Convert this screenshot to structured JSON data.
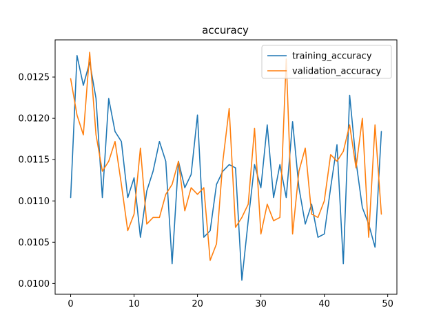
{
  "chart_data": {
    "type": "line",
    "title": "accuracy",
    "xlabel": "",
    "ylabel": "",
    "xlim": [
      -2.45,
      51.45
    ],
    "ylim": [
      0.00987,
      0.01295
    ],
    "xticks": [
      0,
      10,
      20,
      30,
      40,
      50
    ],
    "yticks": [
      0.01,
      0.0105,
      0.011,
      0.0115,
      0.012,
      0.0125
    ],
    "xtick_labels": [
      "0",
      "10",
      "20",
      "30",
      "40",
      "50"
    ],
    "ytick_labels": [
      "0.0100",
      "0.0105",
      "0.0110",
      "0.0115",
      "0.0120",
      "0.0125"
    ],
    "grid": false,
    "legend_position": "upper right",
    "x": [
      0,
      1,
      2,
      3,
      4,
      5,
      6,
      7,
      8,
      9,
      10,
      11,
      12,
      13,
      14,
      15,
      16,
      17,
      18,
      19,
      20,
      21,
      22,
      23,
      24,
      25,
      26,
      27,
      28,
      29,
      30,
      31,
      32,
      33,
      34,
      35,
      36,
      37,
      38,
      39,
      40,
      41,
      42,
      43,
      44,
      45,
      46,
      47,
      48,
      49
    ],
    "series": [
      {
        "name": "training_accuracy",
        "color": "#1f77b4",
        "values": [
          0.01104,
          0.01276,
          0.0124,
          0.01268,
          0.01224,
          0.01104,
          0.01224,
          0.01184,
          0.01172,
          0.01104,
          0.01128,
          0.01056,
          0.01112,
          0.01136,
          0.01172,
          0.01148,
          0.01024,
          0.01148,
          0.01116,
          0.01132,
          0.01204,
          0.01056,
          0.01064,
          0.0112,
          0.01136,
          0.01144,
          0.0114,
          0.01004,
          0.01076,
          0.01144,
          0.01116,
          0.01192,
          0.01104,
          0.01144,
          0.01104,
          0.01196,
          0.01116,
          0.01072,
          0.01096,
          0.01056,
          0.0106,
          0.01116,
          0.01168,
          0.01024,
          0.01228,
          0.01148,
          0.01092,
          0.01072,
          0.01044,
          0.01184
        ]
      },
      {
        "name": "validation_accuracy",
        "color": "#ff7f0e",
        "values": [
          0.01248,
          0.01204,
          0.0118,
          0.0128,
          0.0118,
          0.01136,
          0.01148,
          0.01172,
          0.0112,
          0.01064,
          0.01084,
          0.01164,
          0.01072,
          0.0108,
          0.0108,
          0.01108,
          0.0112,
          0.01148,
          0.01088,
          0.01116,
          0.01108,
          0.01116,
          0.01028,
          0.01048,
          0.01148,
          0.01212,
          0.01068,
          0.0108,
          0.01096,
          0.01188,
          0.0106,
          0.01096,
          0.01076,
          0.0108,
          0.01272,
          0.0106,
          0.01136,
          0.01164,
          0.01084,
          0.0108,
          0.011,
          0.01156,
          0.01148,
          0.0116,
          0.01192,
          0.0114,
          0.012,
          0.01056,
          0.01192,
          0.01084
        ]
      }
    ]
  }
}
